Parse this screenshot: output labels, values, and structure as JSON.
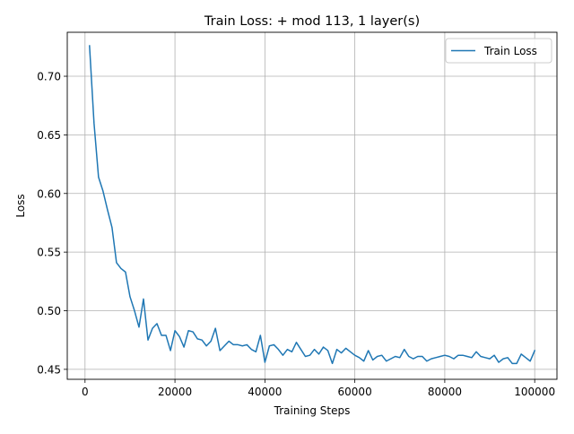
{
  "chart_data": {
    "type": "line",
    "title": "Train Loss: + mod 113, 1 layer(s)",
    "xlabel": "Training Steps",
    "ylabel": "Loss",
    "xlim": [
      -3950,
      104950
    ],
    "ylim": [
      0.4415,
      0.7375
    ],
    "grid": true,
    "legend_position": "top-right",
    "x_ticks": [
      {
        "value": 0,
        "label": "0"
      },
      {
        "value": 20000,
        "label": "20000"
      },
      {
        "value": 40000,
        "label": "40000"
      },
      {
        "value": 60000,
        "label": "60000"
      },
      {
        "value": 80000,
        "label": "80000"
      },
      {
        "value": 100000,
        "label": "100000"
      }
    ],
    "y_ticks": [
      {
        "value": 0.45,
        "label": "0.45"
      },
      {
        "value": 0.5,
        "label": "0.50"
      },
      {
        "value": 0.55,
        "label": "0.55"
      },
      {
        "value": 0.6,
        "label": "0.60"
      },
      {
        "value": 0.65,
        "label": "0.65"
      },
      {
        "value": 0.7,
        "label": "0.70"
      }
    ],
    "series": [
      {
        "name": "Train Loss",
        "color": "#1f77b4",
        "x": [
          1000,
          2000,
          3000,
          4000,
          5000,
          6000,
          7000,
          8000,
          9000,
          10000,
          11000,
          12000,
          13000,
          14000,
          15000,
          16000,
          17000,
          18000,
          19000,
          20000,
          21000,
          22000,
          23000,
          24000,
          25000,
          26000,
          27000,
          28000,
          29000,
          30000,
          31000,
          32000,
          33000,
          34000,
          35000,
          36000,
          37000,
          38000,
          39000,
          40000,
          41000,
          42000,
          43000,
          44000,
          45000,
          46000,
          47000,
          48000,
          49000,
          50000,
          51000,
          52000,
          53000,
          54000,
          55000,
          56000,
          57000,
          58000,
          59000,
          60000,
          61000,
          62000,
          63000,
          64000,
          65000,
          66000,
          67000,
          68000,
          69000,
          70000,
          71000,
          72000,
          73000,
          74000,
          75000,
          76000,
          77000,
          78000,
          79000,
          80000,
          81000,
          82000,
          83000,
          84000,
          85000,
          86000,
          87000,
          88000,
          89000,
          90000,
          91000,
          92000,
          93000,
          94000,
          95000,
          96000,
          97000,
          98000,
          99000,
          100000
        ],
        "y": [
          0.726,
          0.66,
          0.614,
          0.602,
          0.586,
          0.571,
          0.541,
          0.536,
          0.533,
          0.512,
          0.5,
          0.486,
          0.51,
          0.475,
          0.485,
          0.489,
          0.479,
          0.479,
          0.466,
          0.483,
          0.478,
          0.469,
          0.483,
          0.482,
          0.476,
          0.475,
          0.47,
          0.474,
          0.485,
          0.466,
          0.47,
          0.474,
          0.471,
          0.471,
          0.47,
          0.471,
          0.467,
          0.465,
          0.479,
          0.456,
          0.47,
          0.471,
          0.467,
          0.462,
          0.467,
          0.465,
          0.473,
          0.467,
          0.461,
          0.462,
          0.467,
          0.463,
          0.469,
          0.466,
          0.455,
          0.467,
          0.464,
          0.468,
          0.465,
          0.462,
          0.46,
          0.457,
          0.466,
          0.458,
          0.461,
          0.462,
          0.457,
          0.459,
          0.461,
          0.46,
          0.467,
          0.461,
          0.459,
          0.461,
          0.461,
          0.457,
          0.459,
          0.46,
          0.461,
          0.462,
          0.461,
          0.459,
          0.462,
          0.462,
          0.461,
          0.46,
          0.465,
          0.461,
          0.46,
          0.459,
          0.462,
          0.456,
          0.459,
          0.46,
          0.455,
          0.455,
          0.463,
          0.46,
          0.457,
          0.466
        ]
      }
    ]
  }
}
